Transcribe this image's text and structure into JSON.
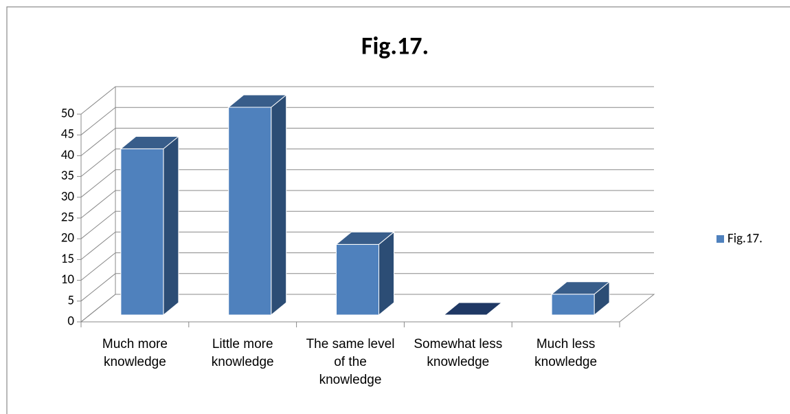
{
  "chart_data": {
    "type": "bar3d",
    "title": "Fig.17.",
    "categories": [
      "Much more knowledge",
      "Little more knowledge",
      "The same level of the knowledge",
      "Somewhat less knowledge",
      "Much less knowledge"
    ],
    "series": [
      {
        "name": "Fig.17.",
        "color": "#4f81bd",
        "values": [
          40,
          50,
          17,
          0,
          5
        ]
      }
    ],
    "ylim": [
      0,
      50
    ],
    "yticks": [
      0,
      5,
      10,
      15,
      20,
      25,
      30,
      35,
      40,
      45,
      50
    ],
    "grid": true,
    "legend": "right"
  }
}
